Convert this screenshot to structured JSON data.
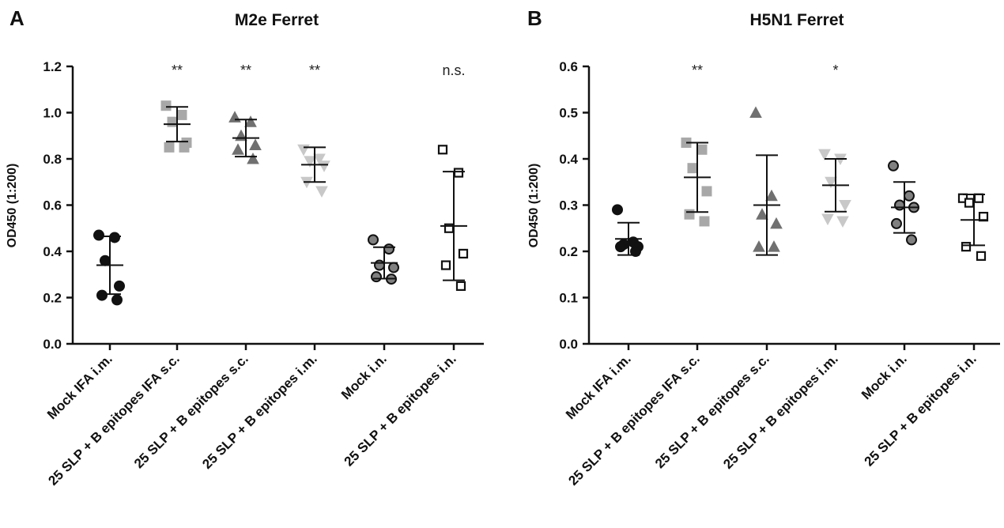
{
  "chart_data": [
    {
      "panel_label": "A",
      "type": "scatter",
      "title": "M2e Ferret",
      "ylabel": "OD450 (1:200)",
      "ylim": [
        0,
        1.2
      ],
      "yticks": [
        "0.0",
        "0.2",
        "0.4",
        "0.6",
        "0.8",
        "1.0",
        "1.2"
      ],
      "grid": false,
      "categories": [
        "Mock IFA i.m.",
        "25 SLP + B epitopes IFA s.c.",
        "25 SLP + B epitopes s.c.",
        "25 SLP + B epitopes i.m.",
        "Mock i.n.",
        "25 SLP + B epitopes i.n."
      ],
      "series": [
        {
          "marker": "circle",
          "fill": "#111111",
          "stroke": "#111111",
          "values": [
            0.47,
            0.46,
            0.36,
            0.25,
            0.21,
            0.19
          ],
          "mean": 0.34,
          "sd": 0.125
        },
        {
          "marker": "square",
          "fill": "#a8a8a8",
          "stroke": "#a8a8a8",
          "values": [
            1.03,
            0.99,
            0.96,
            0.87,
            0.85,
            0.85
          ],
          "mean": 0.95,
          "sd": 0.075
        },
        {
          "marker": "triangle",
          "fill": "#707070",
          "stroke": "#707070",
          "values": [
            0.98,
            0.96,
            0.9,
            0.86,
            0.84,
            0.8
          ],
          "mean": 0.89,
          "sd": 0.08
        },
        {
          "marker": "triangle-down",
          "fill": "#c8c8c8",
          "stroke": "#c8c8c8",
          "values": [
            0.84,
            0.8,
            0.79,
            0.77,
            0.7,
            0.66
          ],
          "mean": 0.775,
          "sd": 0.075
        },
        {
          "marker": "circle",
          "fill": "#808080",
          "stroke": "#111111",
          "values": [
            0.45,
            0.41,
            0.34,
            0.33,
            0.29,
            0.28
          ],
          "mean": 0.35,
          "sd": 0.068
        },
        {
          "marker": "square-open",
          "fill": "#ffffff",
          "stroke": "#111111",
          "values": [
            0.84,
            0.74,
            0.5,
            0.39,
            0.34,
            0.25
          ],
          "mean": 0.51,
          "sd": 0.235
        }
      ],
      "annotations": [
        "",
        "**",
        "**",
        "**",
        "",
        "n.s."
      ]
    },
    {
      "panel_label": "B",
      "type": "scatter",
      "title": "H5N1 Ferret",
      "ylabel": "OD450 (1:200)",
      "ylim": [
        0,
        0.6
      ],
      "yticks": [
        "0.0",
        "0.1",
        "0.2",
        "0.3",
        "0.4",
        "0.5",
        "0.6"
      ],
      "grid": false,
      "categories": [
        "Mock IFA i.m.",
        "25 SLP + B epitopes IFA s.c.",
        "25 SLP + B epitopes s.c.",
        "25 SLP + B epitopes i.m.",
        "Mock i.n.",
        "25 SLP + B epitopes i.n."
      ],
      "series": [
        {
          "marker": "circle",
          "fill": "#111111",
          "stroke": "#111111",
          "values": [
            0.29,
            0.22,
            0.215,
            0.21,
            0.21,
            0.2
          ],
          "mean": 0.227,
          "sd": 0.035
        },
        {
          "marker": "square",
          "fill": "#a8a8a8",
          "stroke": "#a8a8a8",
          "values": [
            0.435,
            0.42,
            0.38,
            0.33,
            0.28,
            0.265
          ],
          "mean": 0.36,
          "sd": 0.075
        },
        {
          "marker": "triangle",
          "fill": "#707070",
          "stroke": "#707070",
          "values": [
            0.5,
            0.32,
            0.28,
            0.26,
            0.21,
            0.21
          ],
          "mean": 0.3,
          "sd": 0.108
        },
        {
          "marker": "triangle-down",
          "fill": "#c8c8c8",
          "stroke": "#c8c8c8",
          "values": [
            0.41,
            0.4,
            0.35,
            0.3,
            0.27,
            0.265
          ],
          "mean": 0.343,
          "sd": 0.057
        },
        {
          "marker": "circle",
          "fill": "#808080",
          "stroke": "#111111",
          "values": [
            0.385,
            0.32,
            0.3,
            0.295,
            0.26,
            0.225
          ],
          "mean": 0.295,
          "sd": 0.055
        },
        {
          "marker": "square-open",
          "fill": "#ffffff",
          "stroke": "#111111",
          "values": [
            0.315,
            0.315,
            0.305,
            0.275,
            0.21,
            0.19
          ],
          "mean": 0.268,
          "sd": 0.055
        }
      ],
      "annotations": [
        "",
        "**",
        "",
        "*",
        "",
        ""
      ]
    }
  ]
}
